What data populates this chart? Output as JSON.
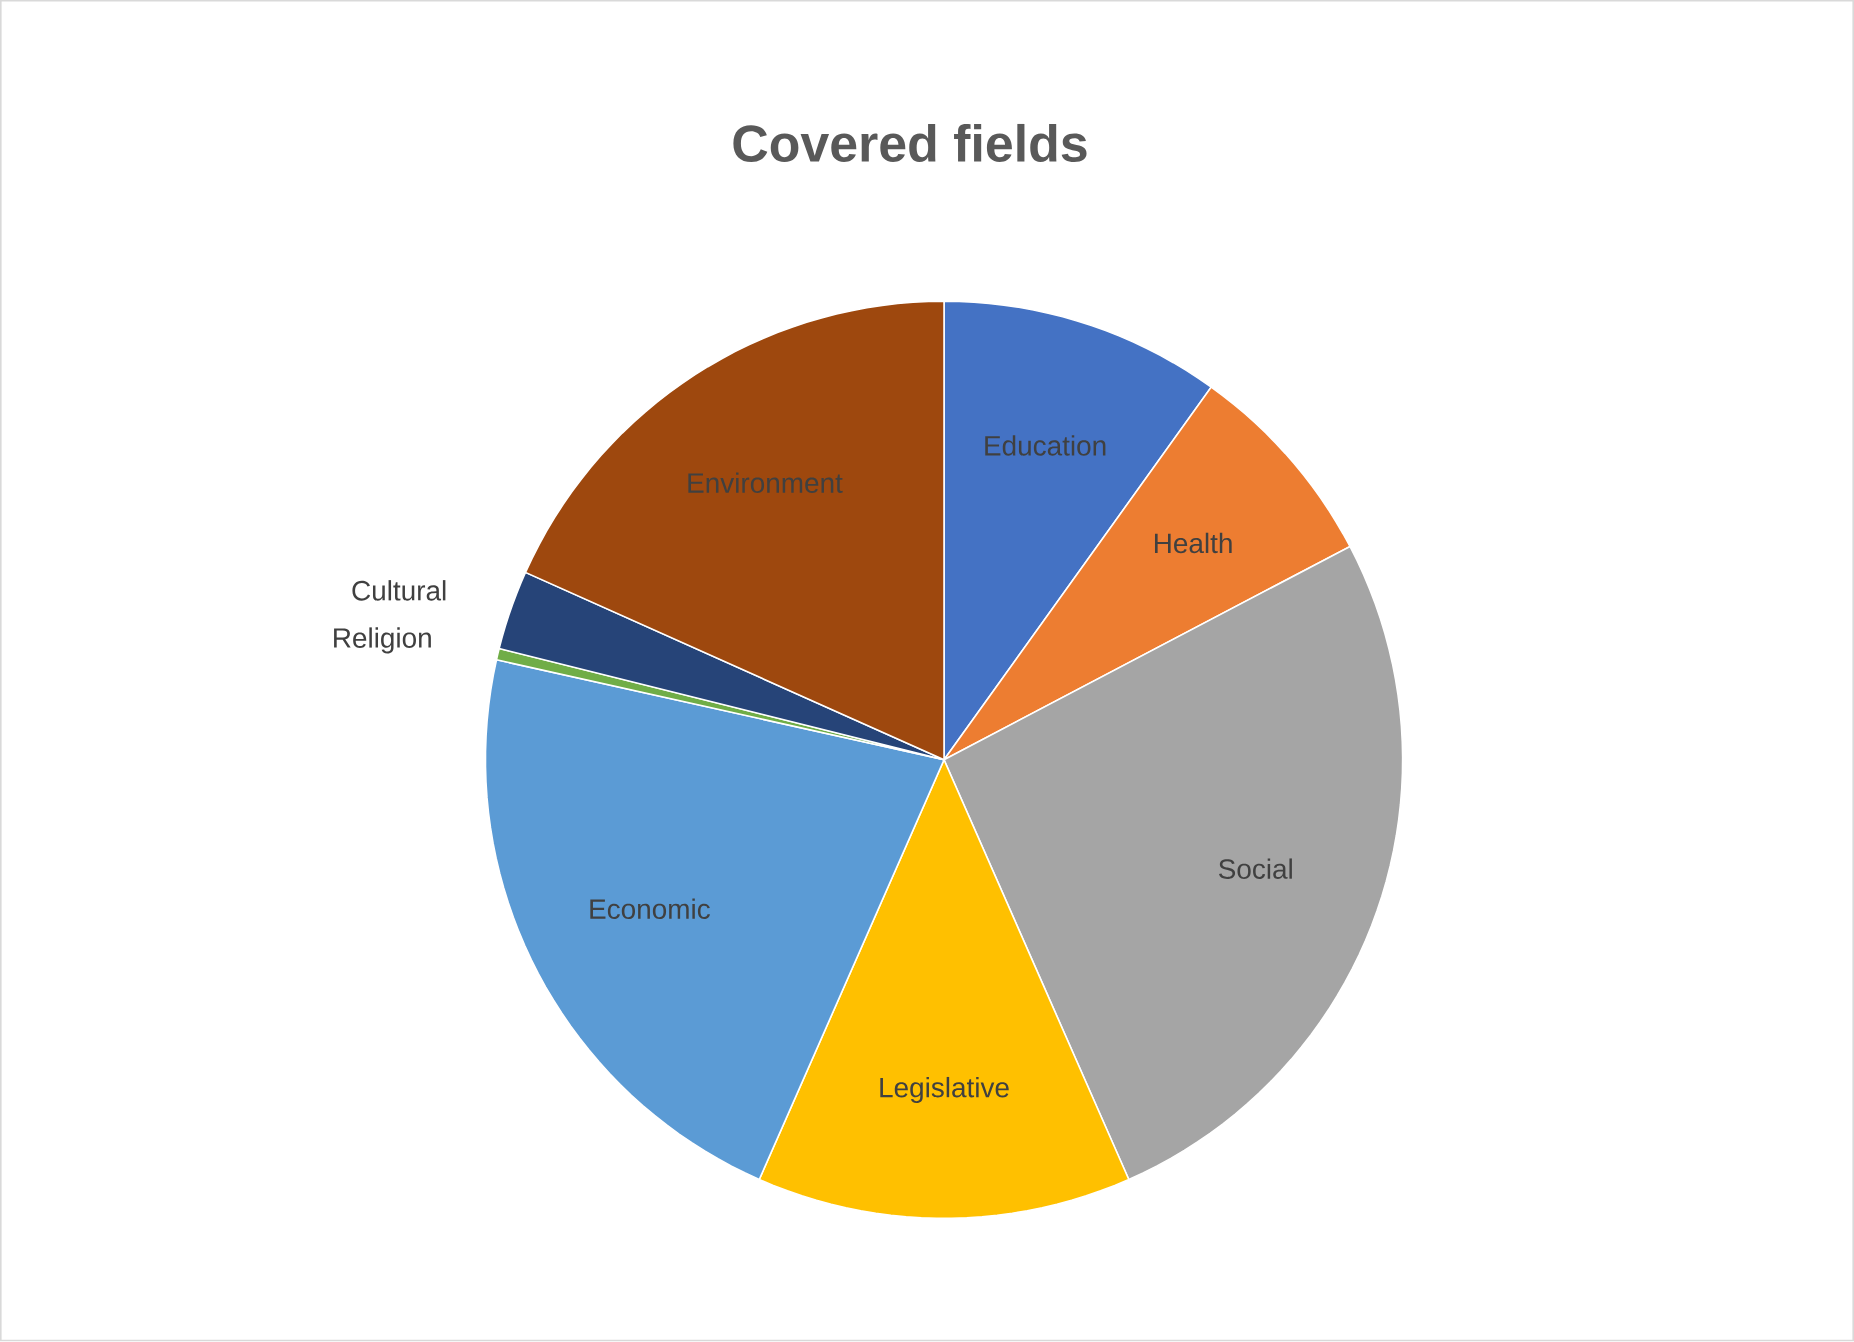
{
  "chart_data": {
    "type": "pie",
    "title": "Covered fields",
    "categories": [
      "Education",
      "Health",
      "Social",
      "Legislative",
      "Economic",
      "Religion",
      "Cultural",
      "Environment"
    ],
    "values": [
      9.9,
      7.4,
      26.1,
      13.2,
      21.9,
      0.4,
      2.8,
      18.3
    ],
    "colors": [
      "#4472c4",
      "#ed7d31",
      "#a5a5a5",
      "#ffc000",
      "#5b9bd5",
      "#70ad47",
      "#264478",
      "#9e480e"
    ]
  }
}
